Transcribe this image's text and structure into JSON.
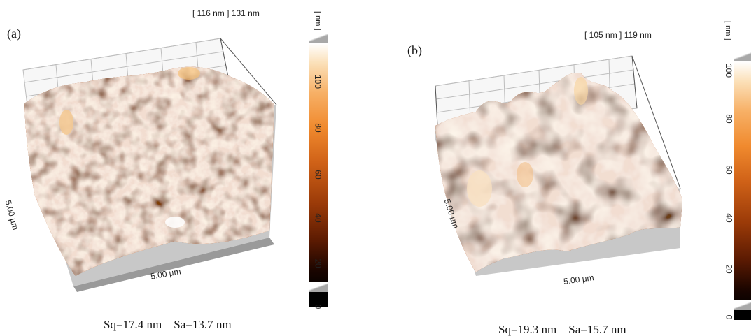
{
  "panels": {
    "a": {
      "label": "(a)",
      "z_range": "[ 116 nm ] 131 nm",
      "x_axis": "5.00 µm",
      "y_axis": "5.00 µm",
      "stats": "Sq=17.4 nm    Sa=13.7 nm",
      "colorbar_unit": "[ nm ]",
      "colorbar_ticks": [
        "100",
        "80",
        "60",
        "40",
        "20",
        "0"
      ]
    },
    "b": {
      "label": "(b)",
      "z_range": "[ 105 nm ] 119 nm",
      "x_axis": "5.00 µm",
      "y_axis": "5.00 µm",
      "stats": "Sq=19.3 nm    Sa=15.7 nm",
      "colorbar_unit": "[ nm ]",
      "colorbar_ticks": [
        "100",
        "80",
        "60",
        "40",
        "20",
        "0"
      ]
    }
  },
  "colors": {
    "surface_dark": "#3a0e02",
    "surface_mid": "#c2561a",
    "surface_light": "#f6c27a",
    "floor_gray": "#c8c8c8"
  }
}
